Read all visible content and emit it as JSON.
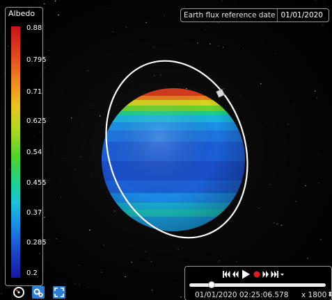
{
  "legend": {
    "title": "Albedo",
    "ticks": [
      "0.88",
      "0.795",
      "0.71",
      "0.625",
      "0.54",
      "0.455",
      "0.37",
      "0.285",
      "0.2"
    ],
    "colors": {
      "high": "#c8141b",
      "mid": "#4fd32a",
      "low": "#1717a0"
    }
  },
  "reference": {
    "label": "Earth flux reference date",
    "date": "01/01/2020"
  },
  "player": {
    "progress": 0.05,
    "time": "01/01/2020 02:25:06.578",
    "speed": "x 1800",
    "speed_arrow": "⬍"
  },
  "toolbar": {
    "tools": [
      "gauge-icon",
      "settings-icon",
      "fullscreen-icon"
    ]
  }
}
